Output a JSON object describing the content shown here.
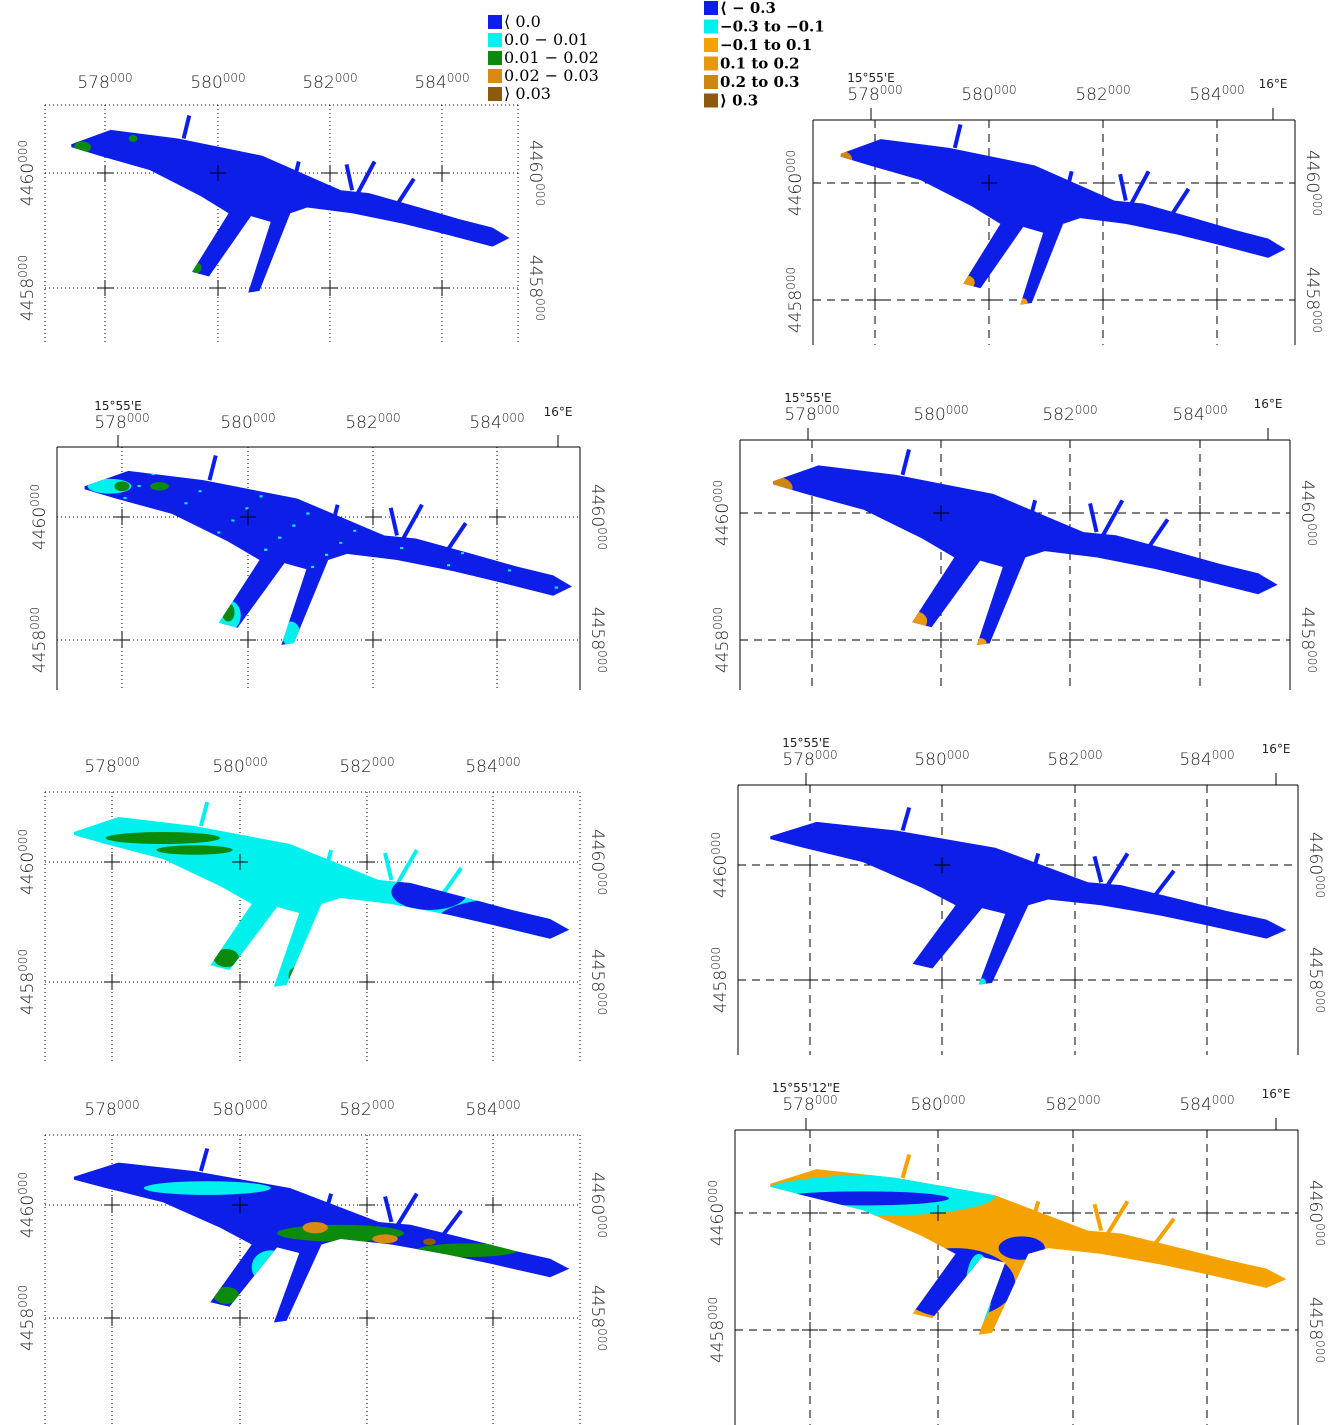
{
  "legends": [
    {
      "items": [
        {
          "label": "⟨ 0.0",
          "color": "#0d1ee8"
        },
        {
          "label": "0.0 − 0.01",
          "color": "#00f0ee"
        },
        {
          "label": "0.01 − 0.02",
          "color": "#0b8a0b"
        },
        {
          "label": "0.02 − 0.03",
          "color": "#d88a12"
        },
        {
          "label": "⟩ 0.03",
          "color": "#8c5a0c"
        }
      ]
    },
    {
      "items": [
        {
          "label": "⟨ − 0.3",
          "color": "#0d1ee8"
        },
        {
          "label": "−0.3 to −0.1",
          "color": "#00f0ee"
        },
        {
          "label": "−0.1 to 0.1",
          "color": "#f5a200"
        },
        {
          "label": "0.1 to 0.2",
          "color": "#e8980e"
        },
        {
          "label": "0.2 to 0.3",
          "color": "#d0860c"
        },
        {
          "label": "⟩ 0.3",
          "color": "#8c5a0c"
        }
      ]
    }
  ],
  "panels": [
    {
      "x_ticks": [
        {
          "main": "578",
          "sup": "000"
        },
        {
          "main": "580",
          "sup": "000"
        },
        {
          "main": "582",
          "sup": "000"
        },
        {
          "main": "584",
          "sup": "000"
        }
      ],
      "y_ticks": [
        {
          "main": "4460",
          "sup": "000"
        },
        {
          "main": "4458",
          "sup": "000"
        }
      ]
    },
    {
      "x_ticks": [
        {
          "main": "578",
          "sup": "000"
        },
        {
          "main": "580",
          "sup": "000"
        },
        {
          "main": "582",
          "sup": "000"
        },
        {
          "main": "584",
          "sup": "000"
        }
      ],
      "y_ticks": [
        {
          "main": "4460",
          "sup": "000"
        },
        {
          "main": "4458",
          "sup": "000"
        }
      ],
      "lon_labels": [
        "15°55'E",
        "16°E"
      ]
    },
    {
      "x_ticks": [
        {
          "main": "578",
          "sup": "000"
        },
        {
          "main": "580",
          "sup": "000"
        },
        {
          "main": "582",
          "sup": "000"
        },
        {
          "main": "584",
          "sup": "000"
        }
      ],
      "y_ticks": [
        {
          "main": "4460",
          "sup": "000"
        },
        {
          "main": "4458",
          "sup": "000"
        }
      ]
    },
    {
      "x_ticks": [
        {
          "main": "578",
          "sup": "000"
        },
        {
          "main": "580",
          "sup": "000"
        },
        {
          "main": "582",
          "sup": "000"
        },
        {
          "main": "584",
          "sup": "000"
        }
      ],
      "y_ticks": [
        {
          "main": "4460",
          "sup": "000"
        },
        {
          "main": "4458",
          "sup": "000"
        }
      ]
    },
    {
      "x_ticks": [
        {
          "main": "578",
          "sup": "000"
        },
        {
          "main": "580",
          "sup": "000"
        },
        {
          "main": "582",
          "sup": "000"
        },
        {
          "main": "584",
          "sup": "000"
        }
      ],
      "y_ticks": [
        {
          "main": "4460",
          "sup": "000"
        },
        {
          "main": "4458",
          "sup": "000"
        }
      ],
      "lon_labels": [
        "15°55'E",
        "16°E"
      ]
    },
    {
      "x_ticks": [
        {
          "main": "578",
          "sup": "000"
        },
        {
          "main": "580",
          "sup": "000"
        },
        {
          "main": "582",
          "sup": "000"
        },
        {
          "main": "584",
          "sup": "000"
        }
      ],
      "y_ticks": [
        {
          "main": "4460",
          "sup": "000"
        },
        {
          "main": "4458",
          "sup": "000"
        }
      ],
      "lon_labels": [
        "15°55'E",
        "16°E"
      ]
    },
    {
      "x_ticks": [
        {
          "main": "578",
          "sup": "000"
        },
        {
          "main": "580",
          "sup": "000"
        },
        {
          "main": "582",
          "sup": "000"
        },
        {
          "main": "584",
          "sup": "000"
        }
      ],
      "y_ticks": [
        {
          "main": "4460",
          "sup": "000"
        },
        {
          "main": "4458",
          "sup": "000"
        }
      ],
      "lon_labels": [
        "15°55'E",
        "16°E"
      ]
    },
    {
      "x_ticks": [
        {
          "main": "578",
          "sup": "000"
        },
        {
          "main": "580",
          "sup": "000"
        },
        {
          "main": "582",
          "sup": "000"
        },
        {
          "main": "584",
          "sup": "000"
        }
      ],
      "y_ticks": [
        {
          "main": "4460",
          "sup": "000"
        },
        {
          "main": "4458",
          "sup": "000"
        }
      ],
      "lon_labels": [
        "15°55'12\"E",
        "16°E"
      ]
    }
  ]
}
